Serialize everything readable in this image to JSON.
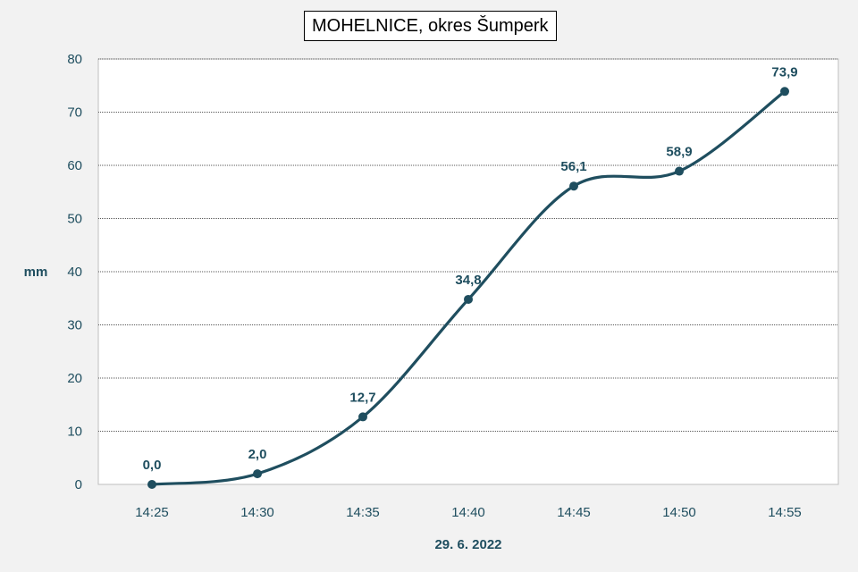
{
  "chart_data": {
    "type": "line",
    "title": "MOHELNICE, okres Šumperk",
    "xlabel": "29. 6. 2022",
    "ylabel": "mm",
    "categories": [
      "14:25",
      "14:30",
      "14:35",
      "14:40",
      "14:45",
      "14:50",
      "14:55"
    ],
    "series": [
      {
        "values": [
          0.0,
          2.0,
          12.7,
          34.8,
          56.1,
          58.9,
          73.9
        ],
        "data_labels": [
          "0,0",
          "2,0",
          "12,7",
          "34,8",
          "56,1",
          "58,9",
          "73,9"
        ]
      }
    ],
    "ylim": [
      0,
      80
    ],
    "yticks": [
      0,
      10,
      20,
      30,
      40,
      50,
      60,
      70,
      80
    ],
    "ytick_labels": [
      "0",
      "10",
      "20",
      "30",
      "40",
      "50",
      "60",
      "70",
      "80"
    ],
    "grid": true,
    "smooth": true,
    "line_color": "#1f4e5f",
    "plot_background": "#ffffff",
    "page_background": "#f2f2f2"
  }
}
